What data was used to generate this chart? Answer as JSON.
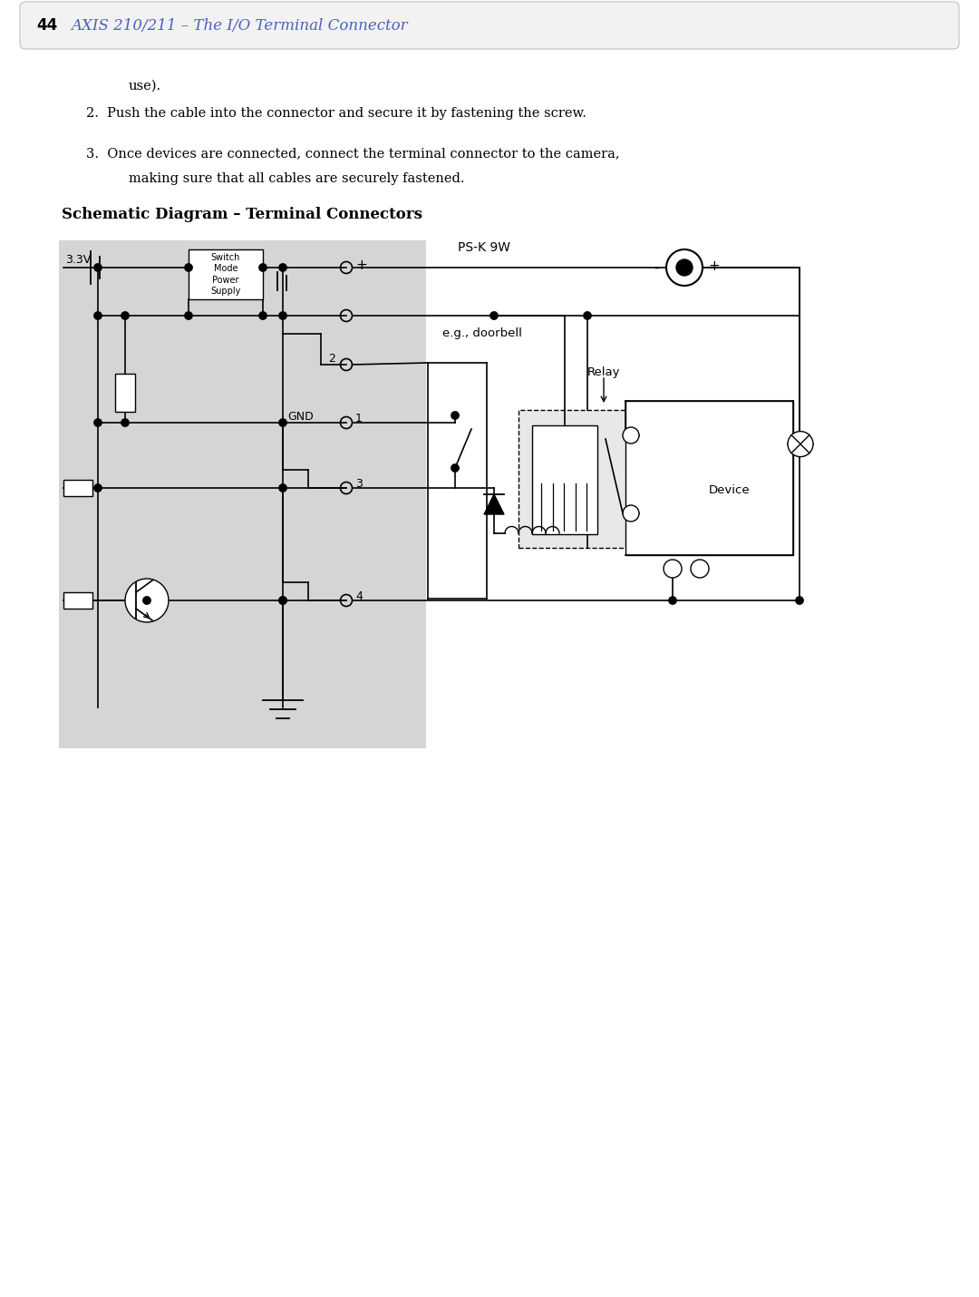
{
  "page_number": "44",
  "header_text": "AXIS 210/211 – The I/O Terminal Connector",
  "header_color": "#4a5fc1",
  "body_text_1": "use).",
  "body_text_2": "2.  Push the cable into the connector and secure it by fastening the screw.",
  "body_text_3": "3.  Once devices are connected, connect the terminal connector to the camera,",
  "body_text_3b": "making sure that all cables are securely fastened.",
  "section_title": "Schematic Diagram – Terminal Connectors",
  "bg_color": "#ffffff",
  "diagram_bg": "#d5d5d5",
  "label_33v": "3.3V",
  "label_switch": "Switch\nMode\nPower\nSupply",
  "label_psk9w": "PS-K 9W",
  "label_gnd": "GND",
  "label_relay": "Relay",
  "label_doorbell": "e.g., doorbell",
  "label_device": "Device"
}
